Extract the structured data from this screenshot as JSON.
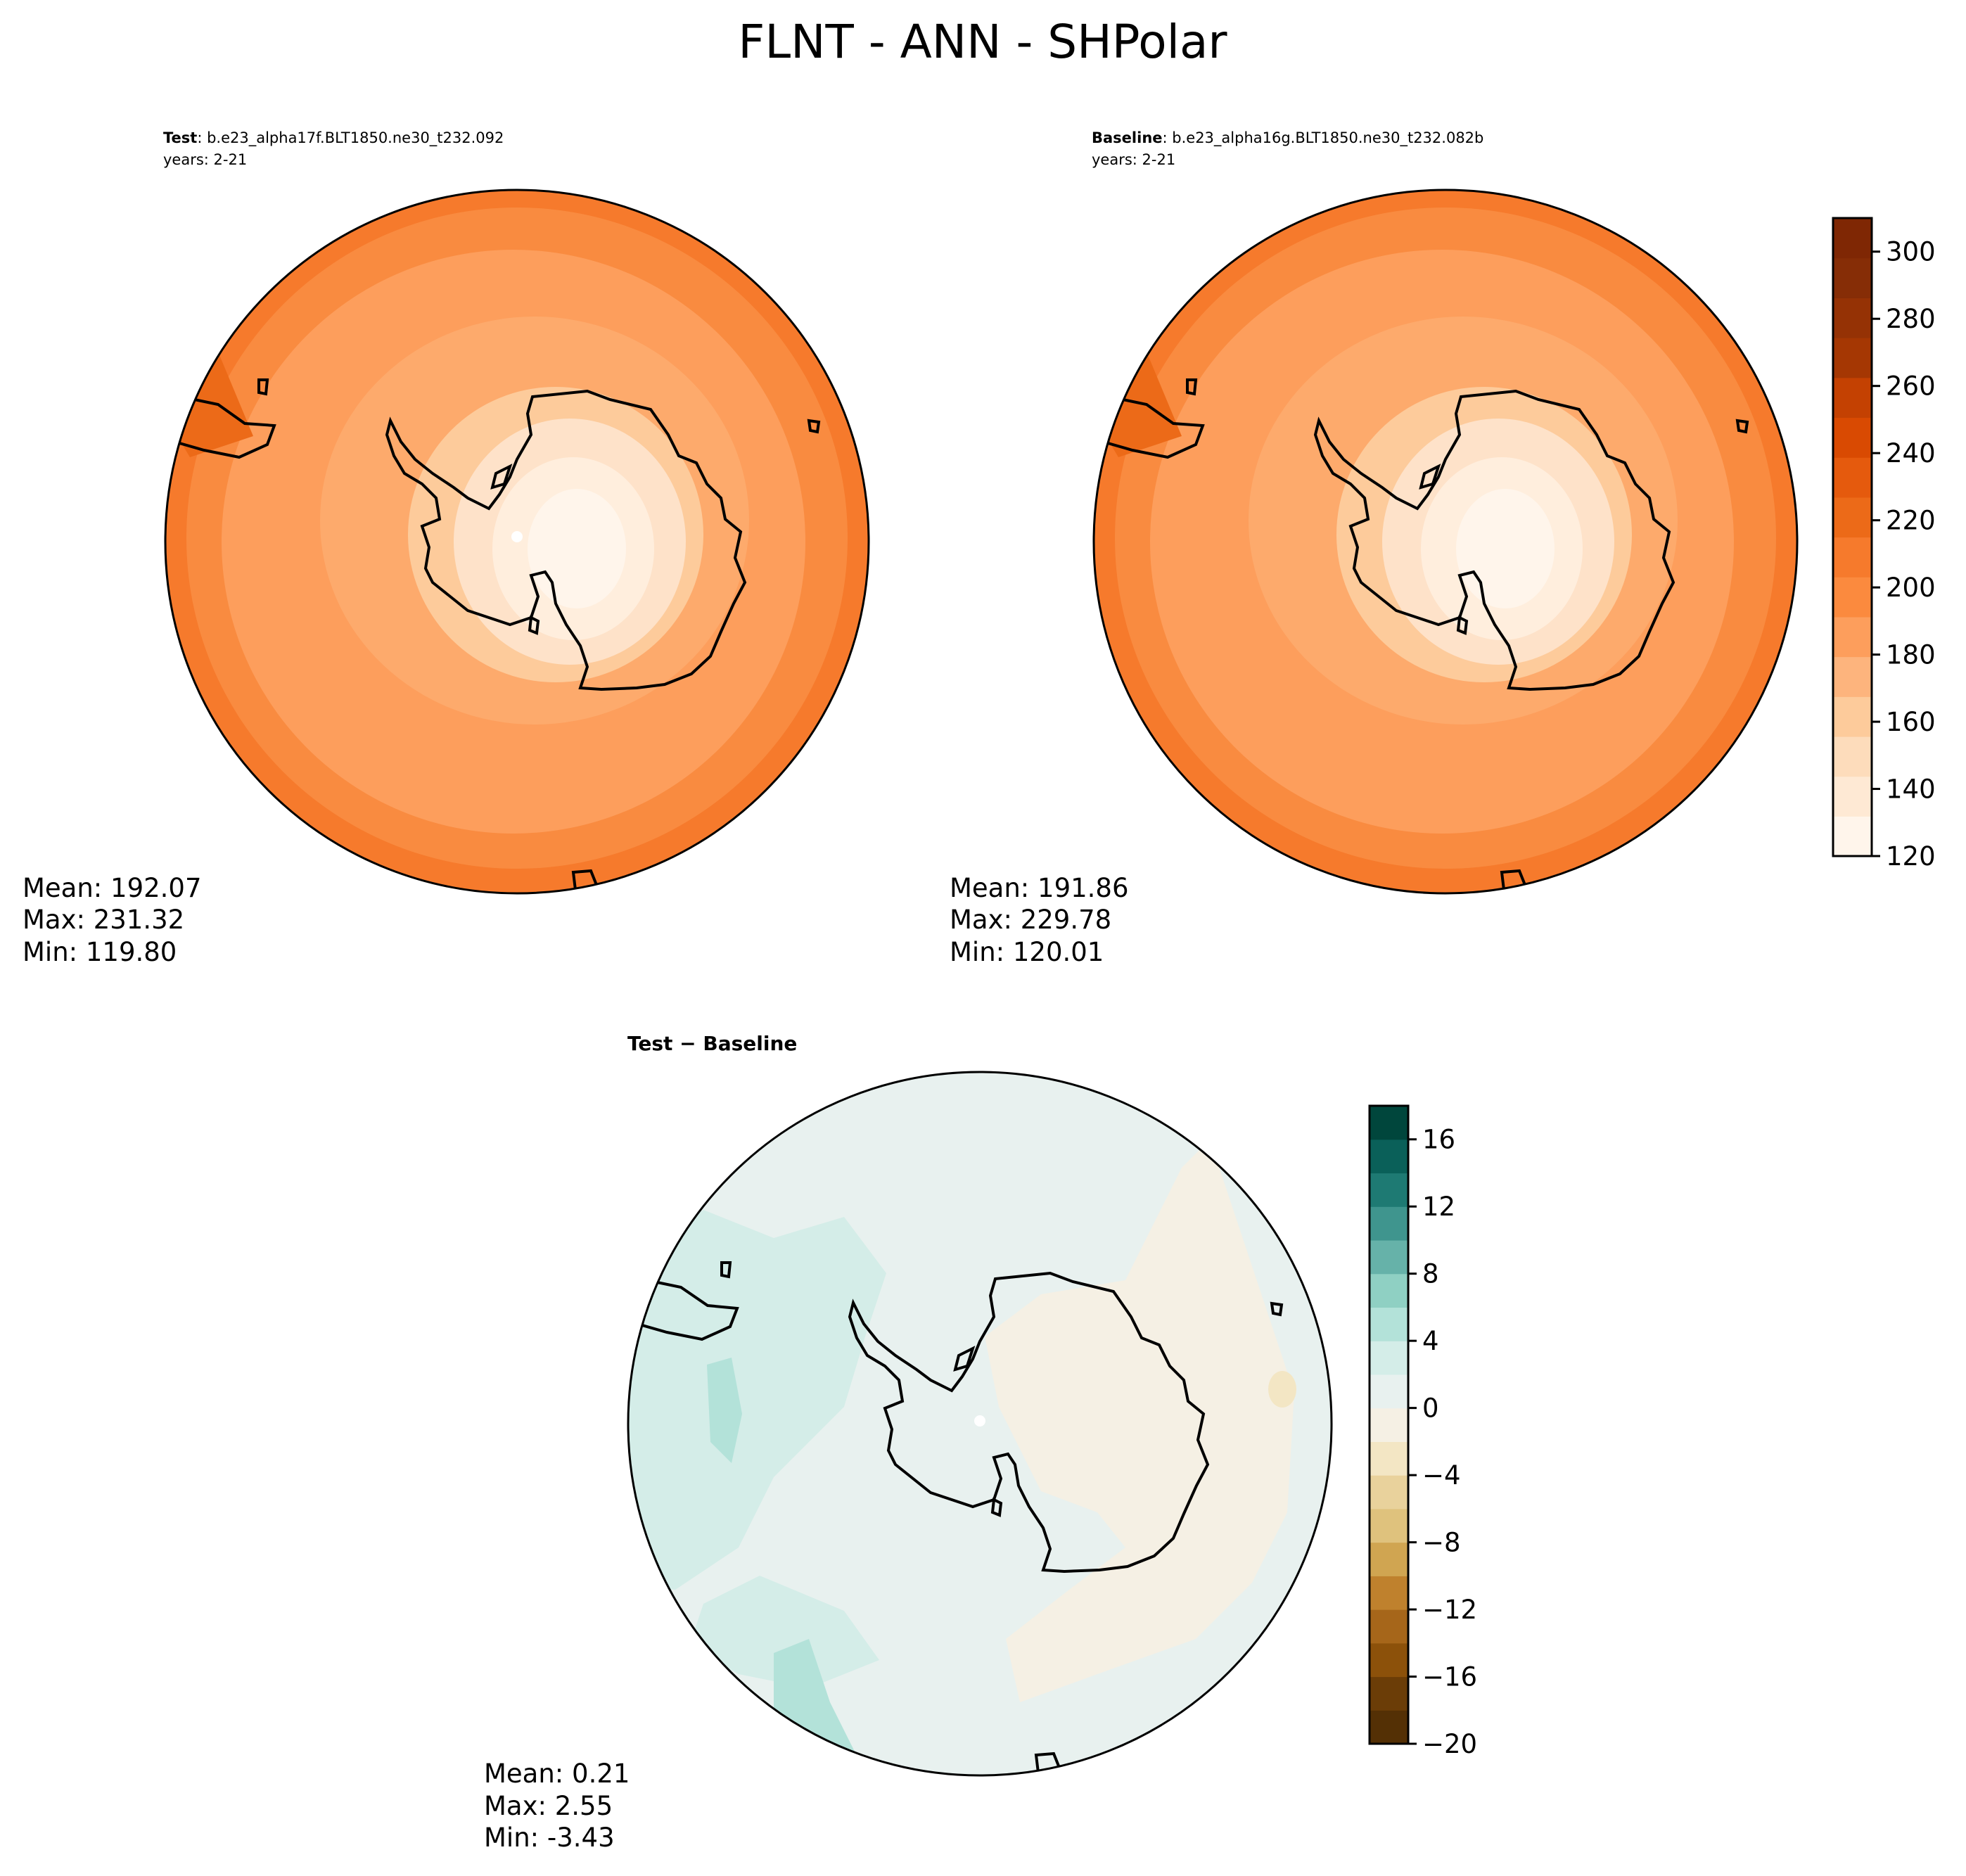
{
  "figure": {
    "title": "FLNT - ANN - SHPolar"
  },
  "panels": [
    {
      "id": "test",
      "header_bold": "Test",
      "header_rest": ": b.e23_alpha17f.BLT1850.ne30_t232.092",
      "years": "years: 2-21",
      "stats": [
        "Mean: 192.07",
        "Max: 231.32",
        "Min: 119.80"
      ],
      "colormap": "Oranges"
    },
    {
      "id": "baseline",
      "header_bold": "Baseline",
      "header_rest": ": b.e23_alpha16g.BLT1850.ne30_t232.082b",
      "years": "years: 2-21",
      "stats": [
        "Mean: 191.86",
        "Max: 229.78",
        "Min: 120.01"
      ],
      "colormap": "Oranges"
    },
    {
      "id": "diff",
      "header_bold": "Test − Baseline",
      "header_rest": "",
      "years": "",
      "stats": [
        "Mean:  0.21",
        "Max:  2.55",
        "Min: -3.43"
      ],
      "colormap": "BrBG"
    }
  ],
  "colorbars": [
    {
      "id": "main",
      "range": [
        120,
        310
      ],
      "ticks": [
        "120",
        "140",
        "160",
        "180",
        "200",
        "220",
        "240",
        "260",
        "280",
        "300"
      ],
      "colors": [
        "#fff5eb",
        "#fee9d4",
        "#fddcbb",
        "#fdcb9b",
        "#fdb47d",
        "#fd9e5c",
        "#fb8a3e",
        "#f67a2c",
        "#ec6a18",
        "#e55a0d",
        "#d94a02",
        "#c44102",
        "#a53703",
        "#953205",
        "#862d06",
        "#7f2704"
      ]
    },
    {
      "id": "diff",
      "range": [
        -20,
        18
      ],
      "ticks": [
        "−20",
        "−16",
        "−12",
        "−8",
        "−4",
        "0",
        "4",
        "8",
        "12",
        "16"
      ],
      "colors": [
        "#543005",
        "#6b3d07",
        "#8c510a",
        "#a6661a",
        "#bf812d",
        "#d0a551",
        "#dfc27d",
        "#e9d29c",
        "#f3e6c4",
        "#f5f0e4",
        "#e8f1ef",
        "#d4ede8",
        "#b3e2d9",
        "#8fd0c3",
        "#66b2a9",
        "#3f958e",
        "#1e7a73",
        "#0a6059",
        "#00463c"
      ]
    }
  ]
}
